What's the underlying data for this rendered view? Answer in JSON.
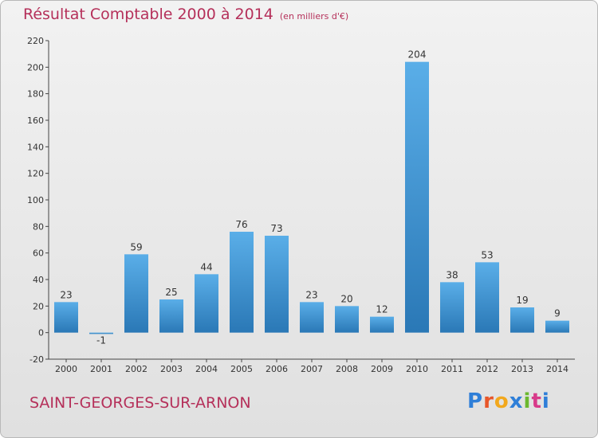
{
  "header": {
    "title": "Résultat Comptable 2000 à 2014",
    "subtitle": "(en milliers d'€)"
  },
  "footer": {
    "commune": "SAINT-GEORGES-SUR-ARNON",
    "logo": "Proxiti"
  },
  "colors": {
    "title": "#b5305a",
    "bar_light": "#5aaee8",
    "bar_dark": "#2a78b6",
    "logo_letters": [
      "#2f7fd8",
      "#e8572a",
      "#f2a81d",
      "#2f7fd8",
      "#6bb82f",
      "#d83a8a",
      "#2f7fd8"
    ]
  },
  "chart_data": {
    "type": "bar",
    "title": "Résultat Comptable 2000 à 2014",
    "unit": "(en milliers d'€)",
    "xlabel": "",
    "ylabel": "",
    "categories": [
      "2000",
      "2001",
      "2002",
      "2003",
      "2004",
      "2005",
      "2006",
      "2007",
      "2008",
      "2009",
      "2010",
      "2011",
      "2012",
      "2013",
      "2014"
    ],
    "values": [
      23,
      -1,
      59,
      25,
      44,
      76,
      73,
      23,
      20,
      12,
      204,
      38,
      53,
      19,
      9
    ],
    "value_labels": [
      "23",
      "-1",
      "59",
      "25",
      "44",
      "76",
      "73",
      "23",
      "20",
      "12",
      "204",
      "38",
      "53",
      "19",
      "9"
    ],
    "yticks": [
      -20,
      0,
      20,
      40,
      60,
      80,
      100,
      120,
      140,
      160,
      180,
      200,
      220
    ],
    "ylim": [
      -20,
      220
    ],
    "grid": false,
    "legend": "none"
  }
}
